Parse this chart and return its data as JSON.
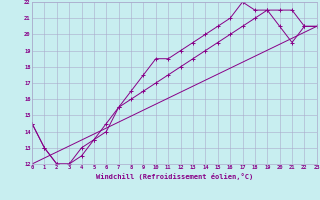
{
  "xlabel": "Windchill (Refroidissement éolien,°C)",
  "bg_color": "#c8eef0",
  "grid_color": "#aaaacc",
  "line_color": "#880088",
  "xlim": [
    0,
    23
  ],
  "ylim": [
    12,
    22
  ],
  "xticks": [
    0,
    1,
    2,
    3,
    4,
    5,
    6,
    7,
    8,
    9,
    10,
    11,
    12,
    13,
    14,
    15,
    16,
    17,
    18,
    19,
    20,
    21,
    22,
    23
  ],
  "yticks": [
    12,
    13,
    14,
    15,
    16,
    17,
    18,
    19,
    20,
    21,
    22
  ],
  "line1_x": [
    0,
    1,
    2,
    3,
    4,
    5,
    6,
    7,
    8,
    9,
    10,
    11,
    12,
    13,
    14,
    15,
    16,
    17,
    18,
    19,
    20,
    21,
    22,
    23
  ],
  "line1_y": [
    14.5,
    13.0,
    12.0,
    12.0,
    13.0,
    13.5,
    14.5,
    15.5,
    16.5,
    17.5,
    18.5,
    18.5,
    19.0,
    19.5,
    20.0,
    20.5,
    21.0,
    22.0,
    21.5,
    21.5,
    20.5,
    19.5,
    20.5,
    20.5
  ],
  "line2_x": [
    0,
    1,
    2,
    3,
    4,
    5,
    6,
    7,
    8,
    9,
    10,
    11,
    12,
    13,
    14,
    15,
    16,
    17,
    18,
    19,
    20,
    21,
    22,
    23
  ],
  "line2_y": [
    14.5,
    13.0,
    12.0,
    12.0,
    12.5,
    13.5,
    14.0,
    15.5,
    16.0,
    16.5,
    17.0,
    17.5,
    18.0,
    18.5,
    19.0,
    19.5,
    20.0,
    20.5,
    21.0,
    21.5,
    21.5,
    21.5,
    20.5,
    20.5
  ],
  "line3_x": [
    0,
    23
  ],
  "line3_y": [
    12.0,
    20.5
  ]
}
